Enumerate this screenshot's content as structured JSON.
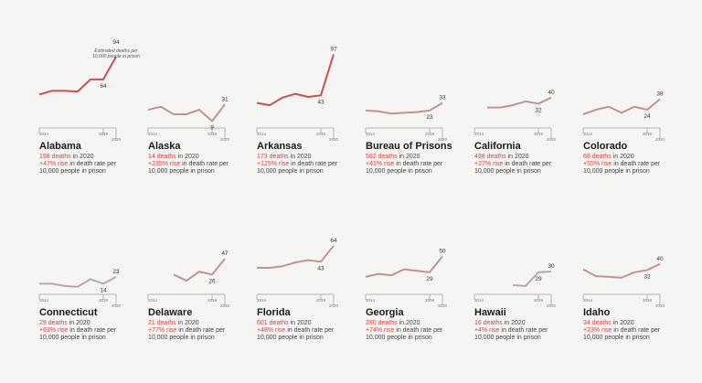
{
  "chart_data": {
    "type": "line",
    "layout": "small-multiples",
    "annotation": "Estimated deaths per 10,000 people in prison",
    "x_ticks": [
      "2014",
      "2019",
      "2020"
    ],
    "phrases": {
      "in_year": " in 2020",
      "rise_suffix": " in death rate per",
      "per_line": "10,000 people in prison"
    },
    "colors": {
      "highlight": "#c8504f",
      "muted": "#c29395",
      "grey": "#b8a8aa",
      "axis": "#b5b5b5",
      "text_red": "#d0443f"
    },
    "panels": [
      {
        "name": "Alabama",
        "deaths": "198 deaths",
        "rise": "+47% rise",
        "color": "highlight",
        "x": [
          2014,
          2015,
          2016,
          2017,
          2018,
          2019,
          2020
        ],
        "y": [
          44,
          49,
          49,
          48,
          64,
          64,
          94
        ]
      },
      {
        "name": "Alaska",
        "deaths": "14 deaths",
        "rise": "+235% rise",
        "color": "muted",
        "x": [
          2014,
          2015,
          2016,
          2017,
          2018,
          2019,
          2020
        ],
        "y": [
          24,
          28,
          18,
          18,
          24,
          9,
          31
        ]
      },
      {
        "name": "Arkansas",
        "deaths": "173 deaths",
        "rise": "+125% rise",
        "color": "highlight",
        "x": [
          2014,
          2015,
          2016,
          2017,
          2018,
          2019,
          2020
        ],
        "y": [
          33,
          30,
          40,
          45,
          41,
          43,
          97
        ]
      },
      {
        "name": "Bureau of Prisons",
        "deaths": "582 deaths",
        "rise": "+41% rise",
        "color": "muted",
        "x": [
          2014,
          2015,
          2016,
          2017,
          2018,
          2019,
          2020
        ],
        "y": [
          23,
          22,
          19,
          20,
          21,
          23,
          33
        ]
      },
      {
        "name": "California",
        "deaths": "498 deaths",
        "rise": "+27% rise",
        "color": "muted",
        "x": [
          2015,
          2016,
          2017,
          2018,
          2019,
          2020
        ],
        "y": [
          27,
          27,
          30,
          35,
          32,
          40
        ]
      },
      {
        "name": "Colorado",
        "deaths": "68 deaths",
        "rise": "+55% rise",
        "color": "muted",
        "x": [
          2014,
          2015,
          2016,
          2017,
          2018,
          2019,
          2020
        ],
        "y": [
          18,
          24,
          28,
          20,
          28,
          24,
          38
        ]
      },
      {
        "name": "Connecticut",
        "deaths": "29 deaths",
        "rise": "+63% rise",
        "color": "grey",
        "x": [
          2014,
          2015,
          2016,
          2017,
          2018,
          2019,
          2020
        ],
        "y": [
          14,
          14,
          11,
          10,
          20,
          14,
          23
        ]
      },
      {
        "name": "Delaware",
        "deaths": "21 deaths",
        "rise": "+77% rise",
        "color": "muted",
        "x": [
          2016,
          2017,
          2018,
          2019,
          2020
        ],
        "y": [
          26,
          18,
          30,
          26,
          47
        ]
      },
      {
        "name": "Florida",
        "deaths": "601 deaths",
        "rise": "+48% rise",
        "color": "muted",
        "x": [
          2014,
          2015,
          2016,
          2017,
          2018,
          2019,
          2020
        ],
        "y": [
          35,
          35,
          37,
          42,
          45,
          43,
          64
        ]
      },
      {
        "name": "Georgia",
        "deaths": "280 deaths",
        "rise": "+74% rise",
        "color": "muted",
        "x": [
          2014,
          2015,
          2016,
          2017,
          2018,
          2019,
          2020
        ],
        "y": [
          23,
          27,
          25,
          33,
          31,
          29,
          50
        ]
      },
      {
        "name": "Hawaii",
        "deaths": "16 deaths",
        "rise": "+4% rise",
        "color": "grey",
        "x": [
          2017,
          2018,
          2019,
          2020
        ],
        "y": [
          12,
          11,
          29,
          30
        ]
      },
      {
        "name": "Idaho",
        "deaths": "34 deaths",
        "rise": "+23% rise",
        "color": "muted",
        "x": [
          2014,
          2015,
          2016,
          2017,
          2018,
          2019,
          2020
        ],
        "y": [
          33,
          24,
          23,
          22,
          29,
          32,
          40
        ]
      }
    ]
  }
}
